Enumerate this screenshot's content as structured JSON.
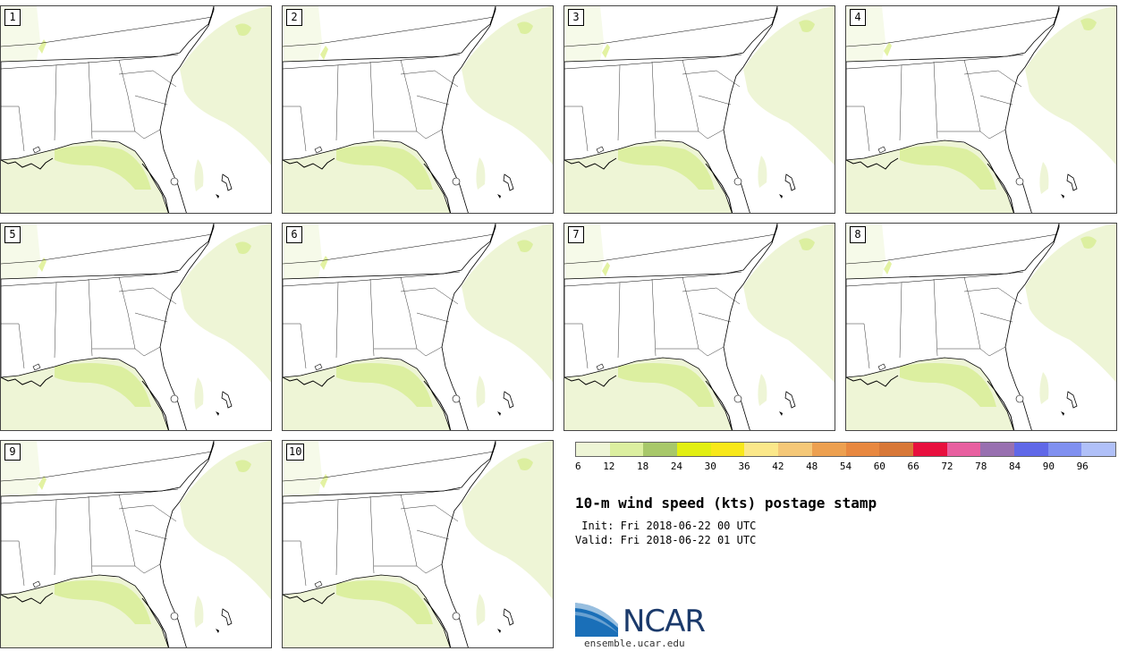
{
  "title": "10-m wind speed (kts) postage stamp",
  "init": " Init: Fri 2018-06-22 00 UTC",
  "valid": "Valid: Fri 2018-06-22 01 UTC",
  "members": [
    "1",
    "2",
    "3",
    "4",
    "5",
    "6",
    "7",
    "8",
    "9",
    "10"
  ],
  "colorbar": {
    "ticks": [
      "6",
      "12",
      "18",
      "24",
      "30",
      "36",
      "42",
      "48",
      "54",
      "60",
      "66",
      "72",
      "78",
      "84",
      "90",
      "96"
    ],
    "colors": [
      "#eef5d6",
      "#dcefa0",
      "#a8c86a",
      "#e2ef12",
      "#f8e81a",
      "#fbe88a",
      "#f5c878",
      "#eda050",
      "#e88840",
      "#d87838",
      "#e8103e",
      "#e860a0",
      "#9870b0",
      "#6068e8",
      "#8090f0",
      "#b0c0f8"
    ]
  },
  "logo": {
    "name": "NCAR",
    "url": "ensemble.ucar.edu"
  },
  "colors": {
    "land_fill": "#ffffff",
    "wind_light": "#eef5d6",
    "wind_medium": "#dcefa0",
    "wind_strong": "#d4ec70"
  }
}
